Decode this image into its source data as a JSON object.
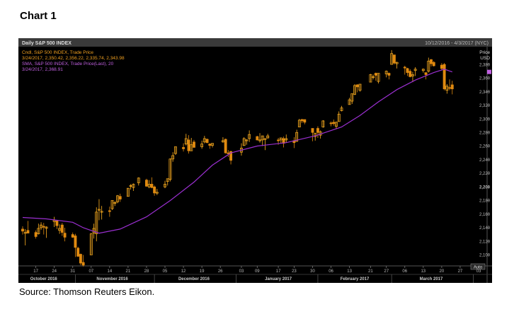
{
  "caption": {
    "title": "Chart 1",
    "source": "Source: Thomson Reuters Eikon."
  },
  "chart_data": {
    "type": "candlestick",
    "title": "Daily S&P 500 INDEX",
    "date_range": "10/12/2016 - 4/3/2017 (NYC)",
    "legend": {
      "line1": "Cndl, S&P 500 INDEX, Trade Price",
      "line2": "3/24/2017, 2,350.42, 2,356.22, 2,335.74, 2,343.98",
      "line3": "SMA, S&P 500 INDEX, Trade Price(Last), 20",
      "line4": "3/24/2017, 2,368.91"
    },
    "y_axis": {
      "label": "Price",
      "unit": "USD",
      "ylim": [
        2088,
        2404
      ],
      "ticks": [
        "2,380",
        "2,360",
        "2,340",
        "2,320",
        "2,300",
        "2,280",
        "2,260",
        "2,240",
        "2,220",
        "2,200",
        "2,180",
        "2,160",
        "2,140",
        "2,120",
        "2,100"
      ]
    },
    "x_ticks": [
      "17",
      "24",
      "31",
      "07",
      "14",
      "21",
      "28",
      "05",
      "12",
      "19",
      "26",
      "03",
      "09",
      "17",
      "23",
      "30",
      "06",
      "13",
      "21",
      "27",
      "06",
      "13",
      "20",
      "27",
      "03"
    ],
    "months": [
      "October 2016",
      "November 2016",
      "December 2016",
      "January 2017",
      "February 2017",
      "March 2017"
    ],
    "auto_label": "Auto",
    "colors": {
      "up": "#ffb020",
      "down": "#e08a10",
      "sma": "#9a2fd0",
      "legend_orange": "#f0a020",
      "legend_purple": "#c060e0",
      "axis_text": "#bbbbbb"
    },
    "candles": [
      {
        "x": "2016-10-12",
        "o": 2138,
        "h": 2142,
        "l": 2130,
        "c": 2135
      },
      {
        "x": "2016-10-13",
        "o": 2132,
        "h": 2138,
        "l": 2114,
        "c": 2133
      },
      {
        "x": "2016-10-14",
        "o": 2136,
        "h": 2150,
        "l": 2132,
        "c": 2132
      },
      {
        "x": "2016-10-17",
        "o": 2133,
        "h": 2136,
        "l": 2124,
        "c": 2127
      },
      {
        "x": "2016-10-18",
        "o": 2131,
        "h": 2146,
        "l": 2130,
        "c": 2139
      },
      {
        "x": "2016-10-19",
        "o": 2140,
        "h": 2148,
        "l": 2137,
        "c": 2144
      },
      {
        "x": "2016-10-20",
        "o": 2142,
        "h": 2147,
        "l": 2130,
        "c": 2141
      },
      {
        "x": "2016-10-21",
        "o": 2139,
        "h": 2142,
        "l": 2125,
        "c": 2141
      },
      {
        "x": "2016-10-24",
        "o": 2149,
        "h": 2156,
        "l": 2141,
        "c": 2151
      },
      {
        "x": "2016-10-25",
        "o": 2150,
        "h": 2151,
        "l": 2138,
        "c": 2143
      },
      {
        "x": "2016-10-26",
        "o": 2136,
        "h": 2145,
        "l": 2131,
        "c": 2139
      },
      {
        "x": "2016-10-27",
        "o": 2144,
        "h": 2147,
        "l": 2128,
        "c": 2133
      },
      {
        "x": "2016-10-28",
        "o": 2132,
        "h": 2140,
        "l": 2120,
        "c": 2126
      },
      {
        "x": "2016-10-31",
        "o": 2130,
        "h": 2133,
        "l": 2125,
        "c": 2126
      },
      {
        "x": "2016-11-01",
        "o": 2128,
        "h": 2131,
        "l": 2097,
        "c": 2111
      },
      {
        "x": "2016-11-02",
        "o": 2110,
        "h": 2112,
        "l": 2097,
        "c": 2098
      },
      {
        "x": "2016-11-03",
        "o": 2101,
        "h": 2102,
        "l": 2085,
        "c": 2088
      },
      {
        "x": "2016-11-04",
        "o": 2089,
        "h": 2100,
        "l": 2083,
        "c": 2085
      },
      {
        "x": "2016-11-07",
        "o": 2100,
        "h": 2132,
        "l": 2100,
        "c": 2131
      },
      {
        "x": "2016-11-08",
        "o": 2132,
        "h": 2146,
        "l": 2124,
        "c": 2139
      },
      {
        "x": "2016-11-09",
        "o": 2131,
        "h": 2170,
        "l": 2120,
        "c": 2163
      },
      {
        "x": "2016-11-10",
        "o": 2167,
        "h": 2182,
        "l": 2151,
        "c": 2167
      },
      {
        "x": "2016-11-11",
        "o": 2163,
        "h": 2172,
        "l": 2152,
        "c": 2164
      },
      {
        "x": "2016-11-14",
        "o": 2165,
        "h": 2171,
        "l": 2156,
        "c": 2164
      },
      {
        "x": "2016-11-15",
        "o": 2168,
        "h": 2180,
        "l": 2166,
        "c": 2180
      },
      {
        "x": "2016-11-16",
        "o": 2177,
        "h": 2179,
        "l": 2172,
        "c": 2177
      },
      {
        "x": "2016-11-17",
        "o": 2178,
        "h": 2188,
        "l": 2176,
        "c": 2187
      },
      {
        "x": "2016-11-18",
        "o": 2186,
        "h": 2190,
        "l": 2178,
        "c": 2182
      },
      {
        "x": "2016-11-21",
        "o": 2186,
        "h": 2198,
        "l": 2186,
        "c": 2198
      },
      {
        "x": "2016-11-22",
        "o": 2201,
        "h": 2204,
        "l": 2196,
        "c": 2202
      },
      {
        "x": "2016-11-23",
        "o": 2199,
        "h": 2205,
        "l": 2194,
        "c": 2204
      },
      {
        "x": "2016-11-25",
        "o": 2206,
        "h": 2214,
        "l": 2202,
        "c": 2213
      },
      {
        "x": "2016-11-28",
        "o": 2210,
        "h": 2212,
        "l": 2200,
        "c": 2201
      },
      {
        "x": "2016-11-29",
        "o": 2200,
        "h": 2210,
        "l": 2198,
        "c": 2204
      },
      {
        "x": "2016-11-30",
        "o": 2204,
        "h": 2214,
        "l": 2198,
        "c": 2199
      },
      {
        "x": "2016-12-01",
        "o": 2200,
        "h": 2202,
        "l": 2187,
        "c": 2191
      },
      {
        "x": "2016-12-02",
        "o": 2191,
        "h": 2197,
        "l": 2188,
        "c": 2192
      },
      {
        "x": "2016-12-05",
        "o": 2200,
        "h": 2209,
        "l": 2198,
        "c": 2204
      },
      {
        "x": "2016-12-06",
        "o": 2208,
        "h": 2212,
        "l": 2202,
        "c": 2212
      },
      {
        "x": "2016-12-07",
        "o": 2211,
        "h": 2242,
        "l": 2208,
        "c": 2241
      },
      {
        "x": "2016-12-08",
        "o": 2241,
        "h": 2251,
        "l": 2237,
        "c": 2246
      },
      {
        "x": "2016-12-09",
        "o": 2249,
        "h": 2259,
        "l": 2247,
        "c": 2259
      },
      {
        "x": "2016-12-12",
        "o": 2258,
        "h": 2264,
        "l": 2252,
        "c": 2256
      },
      {
        "x": "2016-12-13",
        "o": 2263,
        "h": 2278,
        "l": 2261,
        "c": 2271
      },
      {
        "x": "2016-12-14",
        "o": 2269,
        "h": 2276,
        "l": 2249,
        "c": 2253
      },
      {
        "x": "2016-12-15",
        "o": 2253,
        "h": 2272,
        "l": 2253,
        "c": 2262
      },
      {
        "x": "2016-12-16",
        "o": 2266,
        "h": 2269,
        "l": 2259,
        "c": 2258
      },
      {
        "x": "2016-12-19",
        "o": 2259,
        "h": 2268,
        "l": 2256,
        "c": 2263
      },
      {
        "x": "2016-12-20",
        "o": 2266,
        "h": 2275,
        "l": 2264,
        "c": 2271
      },
      {
        "x": "2016-12-21",
        "o": 2270,
        "h": 2271,
        "l": 2264,
        "c": 2265
      },
      {
        "x": "2016-12-22",
        "o": 2263,
        "h": 2264,
        "l": 2256,
        "c": 2261
      },
      {
        "x": "2016-12-23",
        "o": 2261,
        "h": 2264,
        "l": 2258,
        "c": 2264
      },
      {
        "x": "2016-12-27",
        "o": 2266,
        "h": 2273,
        "l": 2265,
        "c": 2268
      },
      {
        "x": "2016-12-28",
        "o": 2270,
        "h": 2271,
        "l": 2249,
        "c": 2250
      },
      {
        "x": "2016-12-29",
        "o": 2250,
        "h": 2254,
        "l": 2244,
        "c": 2249
      },
      {
        "x": "2016-12-30",
        "o": 2252,
        "h": 2253,
        "l": 2233,
        "c": 2239
      },
      {
        "x": "2017-01-03",
        "o": 2251,
        "h": 2264,
        "l": 2246,
        "c": 2257
      },
      {
        "x": "2017-01-04",
        "o": 2261,
        "h": 2273,
        "l": 2260,
        "c": 2271
      },
      {
        "x": "2017-01-05",
        "o": 2268,
        "h": 2270,
        "l": 2262,
        "c": 2269
      },
      {
        "x": "2017-01-06",
        "o": 2271,
        "h": 2283,
        "l": 2266,
        "c": 2277
      },
      {
        "x": "2017-01-09",
        "o": 2274,
        "h": 2275,
        "l": 2268,
        "c": 2269
      },
      {
        "x": "2017-01-10",
        "o": 2269,
        "h": 2279,
        "l": 2265,
        "c": 2269
      },
      {
        "x": "2017-01-11",
        "o": 2269,
        "h": 2275,
        "l": 2260,
        "c": 2275
      },
      {
        "x": "2017-01-12",
        "o": 2271,
        "h": 2271,
        "l": 2254,
        "c": 2271
      },
      {
        "x": "2017-01-13",
        "o": 2272,
        "h": 2278,
        "l": 2271,
        "c": 2275
      },
      {
        "x": "2017-01-17",
        "o": 2269,
        "h": 2272,
        "l": 2262,
        "c": 2268
      },
      {
        "x": "2017-01-18",
        "o": 2269,
        "h": 2272,
        "l": 2264,
        "c": 2272
      },
      {
        "x": "2017-01-19",
        "o": 2271,
        "h": 2274,
        "l": 2258,
        "c": 2264
      },
      {
        "x": "2017-01-20",
        "o": 2269,
        "h": 2277,
        "l": 2265,
        "c": 2271
      },
      {
        "x": "2017-01-23",
        "o": 2268,
        "h": 2273,
        "l": 2257,
        "c": 2265
      },
      {
        "x": "2017-01-24",
        "o": 2267,
        "h": 2284,
        "l": 2266,
        "c": 2280
      },
      {
        "x": "2017-01-25",
        "o": 2288,
        "h": 2300,
        "l": 2288,
        "c": 2298
      },
      {
        "x": "2017-01-26",
        "o": 2299,
        "h": 2300,
        "l": 2294,
        "c": 2297
      },
      {
        "x": "2017-01-27",
        "o": 2299,
        "h": 2299,
        "l": 2292,
        "c": 2295
      },
      {
        "x": "2017-01-30",
        "o": 2286,
        "h": 2286,
        "l": 2267,
        "c": 2280
      },
      {
        "x": "2017-01-31",
        "o": 2274,
        "h": 2279,
        "l": 2268,
        "c": 2279
      },
      {
        "x": "2017-02-01",
        "o": 2286,
        "h": 2289,
        "l": 2272,
        "c": 2280
      },
      {
        "x": "2017-02-02",
        "o": 2276,
        "h": 2283,
        "l": 2271,
        "c": 2281
      },
      {
        "x": "2017-02-03",
        "o": 2288,
        "h": 2298,
        "l": 2287,
        "c": 2297
      },
      {
        "x": "2017-02-06",
        "o": 2294,
        "h": 2296,
        "l": 2289,
        "c": 2293
      },
      {
        "x": "2017-02-07",
        "o": 2295,
        "h": 2299,
        "l": 2290,
        "c": 2293
      },
      {
        "x": "2017-02-08",
        "o": 2289,
        "h": 2296,
        "l": 2285,
        "c": 2295
      },
      {
        "x": "2017-02-09",
        "o": 2296,
        "h": 2311,
        "l": 2296,
        "c": 2307
      },
      {
        "x": "2017-02-10",
        "o": 2312,
        "h": 2319,
        "l": 2311,
        "c": 2316
      },
      {
        "x": "2017-02-13",
        "o": 2321,
        "h": 2331,
        "l": 2321,
        "c": 2328
      },
      {
        "x": "2017-02-14",
        "o": 2326,
        "h": 2337,
        "l": 2322,
        "c": 2337
      },
      {
        "x": "2017-02-15",
        "o": 2336,
        "h": 2351,
        "l": 2335,
        "c": 2349
      },
      {
        "x": "2017-02-16",
        "o": 2350,
        "h": 2351,
        "l": 2339,
        "c": 2347
      },
      {
        "x": "2017-02-17",
        "o": 2342,
        "h": 2351,
        "l": 2340,
        "c": 2351
      },
      {
        "x": "2017-02-21",
        "o": 2354,
        "h": 2366,
        "l": 2354,
        "c": 2365
      },
      {
        "x": "2017-02-22",
        "o": 2361,
        "h": 2365,
        "l": 2358,
        "c": 2362
      },
      {
        "x": "2017-02-23",
        "o": 2367,
        "h": 2368,
        "l": 2356,
        "c": 2364
      },
      {
        "x": "2017-02-24",
        "o": 2355,
        "h": 2367,
        "l": 2352,
        "c": 2367
      },
      {
        "x": "2017-02-27",
        "o": 2366,
        "h": 2371,
        "l": 2361,
        "c": 2370
      },
      {
        "x": "2017-02-28",
        "o": 2367,
        "h": 2368,
        "l": 2358,
        "c": 2364
      },
      {
        "x": "2017-03-01",
        "o": 2380,
        "h": 2401,
        "l": 2380,
        "c": 2396
      },
      {
        "x": "2017-03-02",
        "o": 2394,
        "h": 2394,
        "l": 2380,
        "c": 2382
      },
      {
        "x": "2017-03-03",
        "o": 2381,
        "h": 2384,
        "l": 2374,
        "c": 2383
      },
      {
        "x": "2017-03-06",
        "o": 2376,
        "h": 2378,
        "l": 2365,
        "c": 2375
      },
      {
        "x": "2017-03-07",
        "o": 2374,
        "h": 2375,
        "l": 2363,
        "c": 2368
      },
      {
        "x": "2017-03-08",
        "o": 2370,
        "h": 2373,
        "l": 2361,
        "c": 2362
      },
      {
        "x": "2017-03-09",
        "o": 2363,
        "h": 2369,
        "l": 2354,
        "c": 2365
      },
      {
        "x": "2017-03-10",
        "o": 2371,
        "h": 2376,
        "l": 2363,
        "c": 2373
      },
      {
        "x": "2017-03-13",
        "o": 2371,
        "h": 2374,
        "l": 2368,
        "c": 2373
      },
      {
        "x": "2017-03-14",
        "o": 2368,
        "h": 2368,
        "l": 2358,
        "c": 2365
      },
      {
        "x": "2017-03-15",
        "o": 2370,
        "h": 2390,
        "l": 2368,
        "c": 2385
      },
      {
        "x": "2017-03-16",
        "o": 2387,
        "h": 2388,
        "l": 2377,
        "c": 2381
      },
      {
        "x": "2017-03-17",
        "o": 2383,
        "h": 2385,
        "l": 2377,
        "c": 2378
      },
      {
        "x": "2017-03-20",
        "o": 2379,
        "h": 2382,
        "l": 2371,
        "c": 2374
      },
      {
        "x": "2017-03-21",
        "o": 2380,
        "h": 2382,
        "l": 2342,
        "c": 2344
      },
      {
        "x": "2017-03-22",
        "o": 2342,
        "h": 2351,
        "l": 2337,
        "c": 2348
      },
      {
        "x": "2017-03-23",
        "o": 2346,
        "h": 2358,
        "l": 2342,
        "c": 2345
      },
      {
        "x": "2017-03-24",
        "o": 2350,
        "h": 2356,
        "l": 2336,
        "c": 2344
      }
    ],
    "sma20": [
      {
        "x": "2016-10-12",
        "y": 2155
      },
      {
        "x": "2016-10-21",
        "y": 2153
      },
      {
        "x": "2016-10-31",
        "y": 2148
      },
      {
        "x": "2016-11-04",
        "y": 2140
      },
      {
        "x": "2016-11-10",
        "y": 2132
      },
      {
        "x": "2016-11-18",
        "y": 2138
      },
      {
        "x": "2016-11-28",
        "y": 2156
      },
      {
        "x": "2016-12-07",
        "y": 2180
      },
      {
        "x": "2016-12-16",
        "y": 2207
      },
      {
        "x": "2016-12-23",
        "y": 2232
      },
      {
        "x": "2016-12-30",
        "y": 2250
      },
      {
        "x": "2017-01-09",
        "y": 2260
      },
      {
        "x": "2017-01-20",
        "y": 2265
      },
      {
        "x": "2017-01-31",
        "y": 2275
      },
      {
        "x": "2017-02-10",
        "y": 2288
      },
      {
        "x": "2017-02-17",
        "y": 2305
      },
      {
        "x": "2017-02-24",
        "y": 2325
      },
      {
        "x": "2017-03-03",
        "y": 2343
      },
      {
        "x": "2017-03-10",
        "y": 2357
      },
      {
        "x": "2017-03-17",
        "y": 2368
      },
      {
        "x": "2017-03-21",
        "y": 2373
      },
      {
        "x": "2017-03-24",
        "y": 2369
      }
    ]
  }
}
